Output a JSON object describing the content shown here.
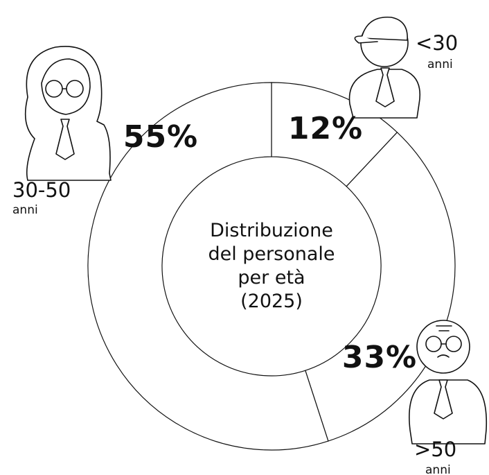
{
  "chart_data": {
    "type": "donut",
    "title_lines": [
      "Distribuzione",
      "del personale",
      "per età",
      "(2025)"
    ],
    "categories": [
      "<30",
      ">50",
      "30-50"
    ],
    "category_unit": "anni",
    "values": [
      12,
      33,
      55
    ],
    "value_labels": [
      "12%",
      "33%",
      "55%"
    ],
    "color": "#ffffff",
    "stroke": "#111111"
  }
}
